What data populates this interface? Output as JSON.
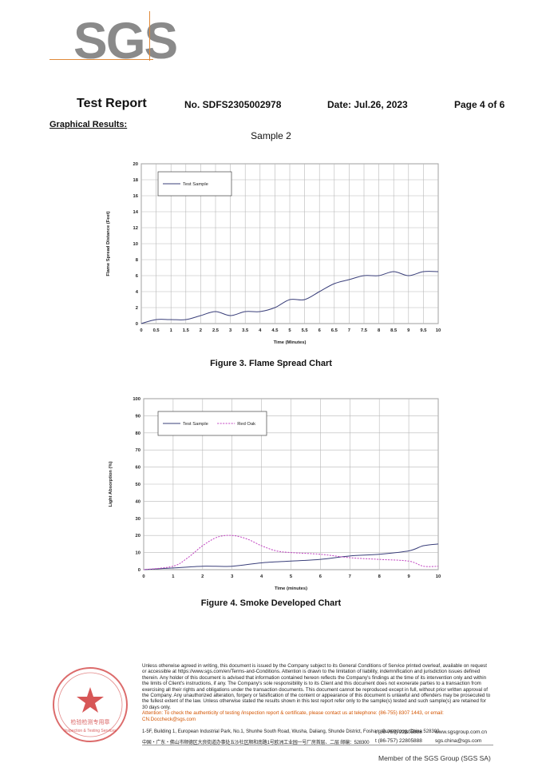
{
  "logo": {
    "text": "SGS"
  },
  "header": {
    "title": "Test Report",
    "report_no": "No. SDFS2305002978",
    "date": "Date: Jul.26, 2023",
    "page": "Page 4 of 6"
  },
  "section_title": "Graphical Results:",
  "sample_label": "Sample 2",
  "figure3": {
    "caption": "Figure 3.  Flame Spread Chart",
    "chart_data": {
      "type": "line",
      "xlabel": "Time (Minutes)",
      "ylabel": "Flame Spread Distance (Feet)",
      "xlim": [
        0,
        10
      ],
      "ylim": [
        0,
        20
      ],
      "x_ticks": [
        "0",
        "0.5",
        "1",
        "1.5",
        "2",
        "2.5",
        "3",
        "3.5",
        "4",
        "4.5",
        "5",
        "5.5",
        "6",
        "6.5",
        "7",
        "7.5",
        "8",
        "8.5",
        "9",
        "9.5",
        "10"
      ],
      "y_ticks": [
        "0",
        "2",
        "4",
        "6",
        "8",
        "10",
        "12",
        "14",
        "16",
        "18",
        "20"
      ],
      "grid": true,
      "legend_position": "top-left",
      "series": [
        {
          "name": "Test Sample",
          "color": "#3a3f7a",
          "style": "solid",
          "x": [
            0,
            0.5,
            1,
            1.5,
            2,
            2.5,
            3,
            3.5,
            4,
            4.5,
            5,
            5.5,
            6,
            6.5,
            7,
            7.5,
            8,
            8.5,
            9,
            9.5,
            10
          ],
          "y": [
            0,
            0.5,
            0.5,
            0.5,
            1,
            1.5,
            1,
            1.5,
            1.5,
            2,
            3,
            3,
            4,
            5,
            5.5,
            6,
            6,
            6.5,
            6,
            6.5,
            6.5
          ]
        }
      ]
    }
  },
  "figure4": {
    "caption": "Figure 4.  Smoke Developed Chart",
    "chart_data": {
      "type": "line",
      "xlabel": "Time (minutes)",
      "ylabel": "Light Absorption (%)",
      "xlim": [
        0,
        10
      ],
      "ylim": [
        0,
        100
      ],
      "x_ticks": [
        "0",
        "1",
        "2",
        "3",
        "4",
        "5",
        "6",
        "7",
        "8",
        "9",
        "10"
      ],
      "y_ticks": [
        "0",
        "10",
        "20",
        "30",
        "40",
        "50",
        "60",
        "70",
        "80",
        "90",
        "100"
      ],
      "grid": true,
      "legend_position": "top-left",
      "series": [
        {
          "name": "Test Sample",
          "color": "#3a3f7a",
          "style": "solid",
          "x": [
            0,
            1,
            2,
            3,
            4,
            5,
            6,
            7,
            8,
            9,
            9.5,
            10
          ],
          "y": [
            0,
            1,
            2,
            2,
            4,
            5,
            6,
            8,
            9,
            11,
            14,
            15
          ]
        },
        {
          "name": "Red Oak",
          "color": "#c040c0",
          "style": "dashed",
          "x": [
            0,
            1,
            1.5,
            2,
            2.5,
            3,
            3.5,
            4,
            4.5,
            5,
            6,
            7,
            8,
            9,
            9.5,
            10
          ],
          "y": [
            0,
            2,
            7,
            14,
            19,
            20,
            18,
            14,
            11,
            10,
            9,
            7,
            6,
            5,
            2,
            2
          ]
        }
      ]
    }
  },
  "footer": {
    "disclaimer": "Unless otherwise agreed in writing, this document is issued by the Company subject to its General Conditions of Service printed overleaf, available on request or accessible at https://www.sgs.com/en/Terms-and-Conditions. Attention is drawn to the limitation of liability, indemnification and jurisdiction issues defined therein. Any holder of this document is advised that information contained hereon reflects the Company's findings at the time of its intervention only and within the limits of Client's instructions, if any. The Company's sole responsibility is to its Client and this document does not exonerate parties to a transaction from exercising all their rights and obligations under the transaction documents. This document cannot be reproduced except in full, without prior written approval of the Company. Any unauthorized alteration, forgery or falsification of the content or appearance of this document is unlawful and offenders may be prosecuted to the fullest extent of the law. Unless otherwise stated the results shown in this test report refer only to the sample(s) tested and such sample(s) are retained for 30 days only.",
    "attention": "Attention: To check the authenticity of testing /inspection report & certificate, please contact us at telephone: (86-755) 8307 1443, or email: CN.Doccheck@sgs.com",
    "address_en": "1-5F, Building 1, European Industrial Park, No.1, Shunhe South Road, Wusha, Daliang, Shunde District, Foshan, Guangdong, China 528300",
    "address_cn": "中国・广东・佛山市顺德区大良街道办事处五沙社区顺和南路1号欧洲工业园一号厂房首层、二层   邮编：528300",
    "tel1": "t (86-757) 22805888",
    "tel2": "t (86-757) 22805888",
    "web1": "www.sgsgroup.com.cn",
    "web2": "sgs.china@sgs.com",
    "member": "Member of the SGS Group (SGS SA)",
    "seal_text": "检验检测专用章",
    "seal_sub": "Inspection & Testing Services"
  }
}
